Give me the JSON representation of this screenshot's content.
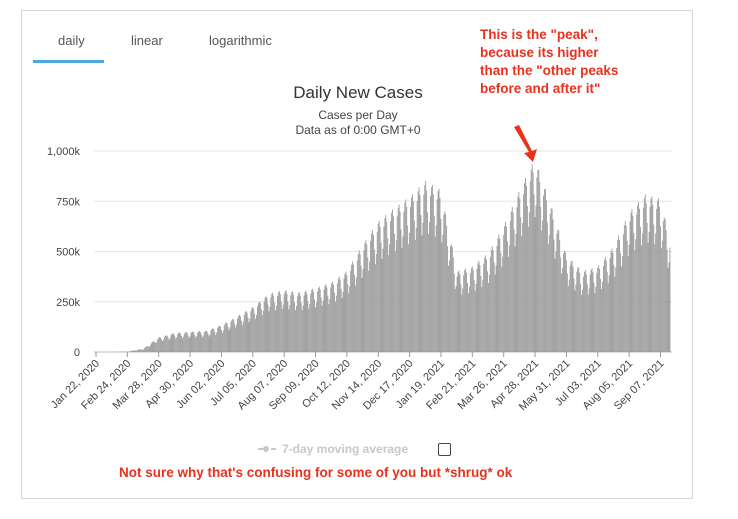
{
  "tabs": [
    {
      "label": "daily",
      "active": true
    },
    {
      "label": "linear",
      "active": false
    },
    {
      "label": "logarithmic",
      "active": false
    }
  ],
  "colors": {
    "bars": "#999999",
    "accent": "#4aa8e0",
    "annotation": "#e8321e"
  },
  "annotations": {
    "peak_lines": [
      "This is the \"peak\",",
      "because its higher",
      "than the \"other peaks",
      "before and after it\""
    ],
    "footer": "Not sure why that's confusing for some of you but *shrug* ok"
  },
  "legend": {
    "label": "7-day moving average",
    "checked": false
  },
  "chart_data": {
    "type": "bar",
    "title": "Daily New Cases",
    "subtitle_lines": [
      "Cases per Day",
      "Data as of 0:00 GMT+0"
    ],
    "xlabel": "",
    "ylabel": "",
    "ylim": [
      0,
      1000000
    ],
    "y_ticks": [
      0,
      250000,
      500000,
      750000,
      1000000
    ],
    "y_tick_labels": [
      "0",
      "250k",
      "500k",
      "750k",
      "1,000k"
    ],
    "x_tick_labels": [
      "Jan 22, 2020",
      "Feb 24, 2020",
      "Mar 28, 2020",
      "Apr 30, 2020",
      "Jun 02, 2020",
      "Jul 05, 2020",
      "Aug 07, 2020",
      "Sep 09, 2020",
      "Oct 12, 2020",
      "Nov 14, 2020",
      "Dec 17, 2020",
      "Jan 19, 2021",
      "Feb 21, 2021",
      "Mar 26, 2021",
      "Apr 28, 2021",
      "May 31, 2021",
      "Jul 03, 2021",
      "Aug 05, 2021",
      "Sep 07, 2021"
    ],
    "grid": true,
    "series": [
      {
        "x": [
          "2020-01-22",
          "2020-02-08",
          "2020-02-24",
          "2020-03-12",
          "2020-03-28",
          "2020-04-14",
          "2020-04-30",
          "2020-05-17",
          "2020-06-02",
          "2020-06-19",
          "2020-07-05",
          "2020-07-22",
          "2020-08-07",
          "2020-08-24",
          "2020-09-09",
          "2020-09-26",
          "2020-10-12",
          "2020-10-29",
          "2020-11-14",
          "2020-12-01",
          "2020-12-17",
          "2021-01-03",
          "2021-01-19",
          "2021-02-05",
          "2021-02-21",
          "2021-03-10",
          "2021-03-26",
          "2021-04-12",
          "2021-04-28",
          "2021-05-15",
          "2021-05-31",
          "2021-06-17",
          "2021-07-03",
          "2021-07-20",
          "2021-08-05",
          "2021-08-22",
          "2021-09-07",
          "2021-09-17"
        ],
        "values": [
          0,
          0,
          2000,
          15000,
          65000,
          85000,
          90000,
          95000,
          120000,
          160000,
          200000,
          260000,
          275000,
          265000,
          285000,
          310000,
          360000,
          480000,
          580000,
          640000,
          690000,
          760000,
          720000,
          360000,
          380000,
          440000,
          560000,
          720000,
          860000,
          650000,
          430000,
          360000,
          380000,
          470000,
          620000,
          700000,
          680000,
          500000
        ]
      }
    ]
  }
}
